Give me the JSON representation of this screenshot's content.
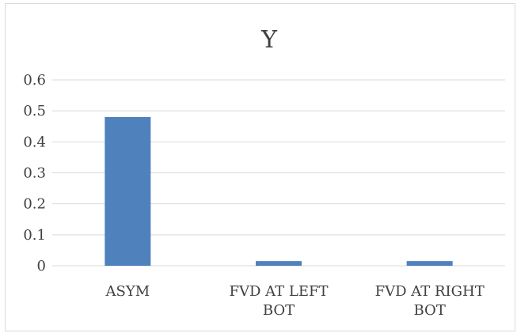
{
  "chart_data": {
    "type": "bar",
    "title": "Y",
    "categories": [
      [
        "ASYM"
      ],
      [
        "FVD AT LEFT",
        "BOT"
      ],
      [
        "FVD AT RIGHT",
        "BOT"
      ]
    ],
    "series": [
      {
        "values": [
          0.48,
          0.015,
          0.015
        ]
      }
    ],
    "yticks": [
      "0",
      "0.1",
      "0.2",
      "0.3",
      "0.4",
      "0.5",
      "0.6"
    ],
    "ylim": [
      0,
      0.6
    ],
    "grid": true,
    "legend": "none",
    "bar_color": "#4f81bd",
    "grid_color": "#d9d9d9"
  }
}
